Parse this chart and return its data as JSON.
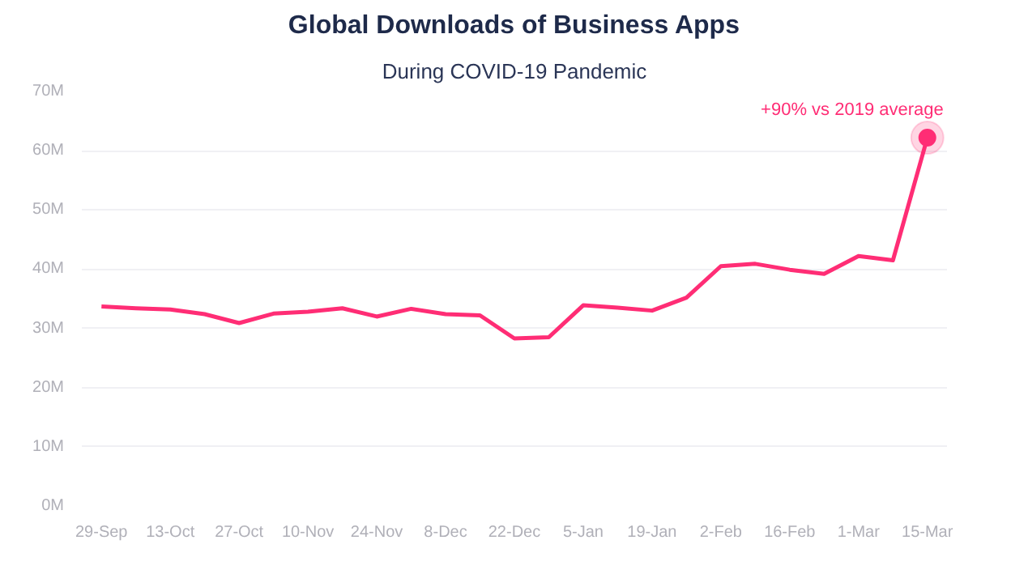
{
  "chart_data": {
    "type": "line",
    "title": "Global Downloads of Business Apps",
    "subtitle": "During COVID-19 Pandemic",
    "x": [
      "2019-09-29",
      "2019-10-06",
      "2019-10-13",
      "2019-10-20",
      "2019-10-27",
      "2019-11-03",
      "2019-11-10",
      "2019-11-17",
      "2019-11-24",
      "2019-12-01",
      "2019-12-08",
      "2019-12-15",
      "2019-12-22",
      "2019-12-29",
      "2020-01-05",
      "2020-01-12",
      "2020-01-19",
      "2020-01-26",
      "2020-02-02",
      "2020-02-09",
      "2020-02-16",
      "2020-02-23",
      "2020-03-01",
      "2020-03-08",
      "2020-03-15"
    ],
    "series": [
      {
        "color": "#ff2d75",
        "values": [
          33.7,
          33.4,
          33.2,
          32.4,
          30.9,
          32.5,
          32.8,
          33.4,
          32.0,
          33.3,
          32.4,
          32.2,
          28.3,
          28.5,
          33.9,
          33.5,
          33.0,
          35.2,
          40.5,
          40.9,
          39.9,
          39.2,
          42.2,
          41.5,
          62.2
        ]
      },
      {
        "type": "scatter",
        "marker": "circle",
        "color": "#ff2d75",
        "x": [
          "2020-03-15"
        ],
        "values": [
          62.2
        ]
      }
    ],
    "xlim": [
      "2019-09-25",
      "2020-03-19"
    ],
    "xticks": [
      {
        "value": "2019-09-29",
        "label": "29-Sep"
      },
      {
        "value": "2019-10-13",
        "label": "13-Oct"
      },
      {
        "value": "2019-10-27",
        "label": "27-Oct"
      },
      {
        "value": "2019-11-10",
        "label": "10-Nov"
      },
      {
        "value": "2019-11-24",
        "label": "24-Nov"
      },
      {
        "value": "2019-12-08",
        "label": "8-Dec"
      },
      {
        "value": "2019-12-22",
        "label": "22-Dec"
      },
      {
        "value": "2020-01-05",
        "label": "5-Jan"
      },
      {
        "value": "2020-01-19",
        "label": "19-Jan"
      },
      {
        "value": "2020-02-02",
        "label": "2-Feb"
      },
      {
        "value": "2020-02-16",
        "label": "16-Feb"
      },
      {
        "value": "2020-03-01",
        "label": "1-Mar"
      },
      {
        "value": "2020-03-15",
        "label": "15-Mar"
      }
    ],
    "ylim": [
      0,
      70
    ],
    "yticks": [
      {
        "value": 0,
        "label": "0M"
      },
      {
        "value": 10,
        "label": "10M"
      },
      {
        "value": 20,
        "label": "20M"
      },
      {
        "value": 30,
        "label": "30M"
      },
      {
        "value": 40,
        "label": "40M"
      },
      {
        "value": 50,
        "label": "50M"
      },
      {
        "value": 60,
        "label": "60M"
      },
      {
        "value": 70,
        "label": "70M"
      }
    ],
    "grid": "y",
    "marker": "none",
    "line_style": "solid",
    "annotations": [
      {
        "text": "+90% vs 2019 average",
        "x": "2020-03-15",
        "y": 62.2
      }
    ]
  }
}
